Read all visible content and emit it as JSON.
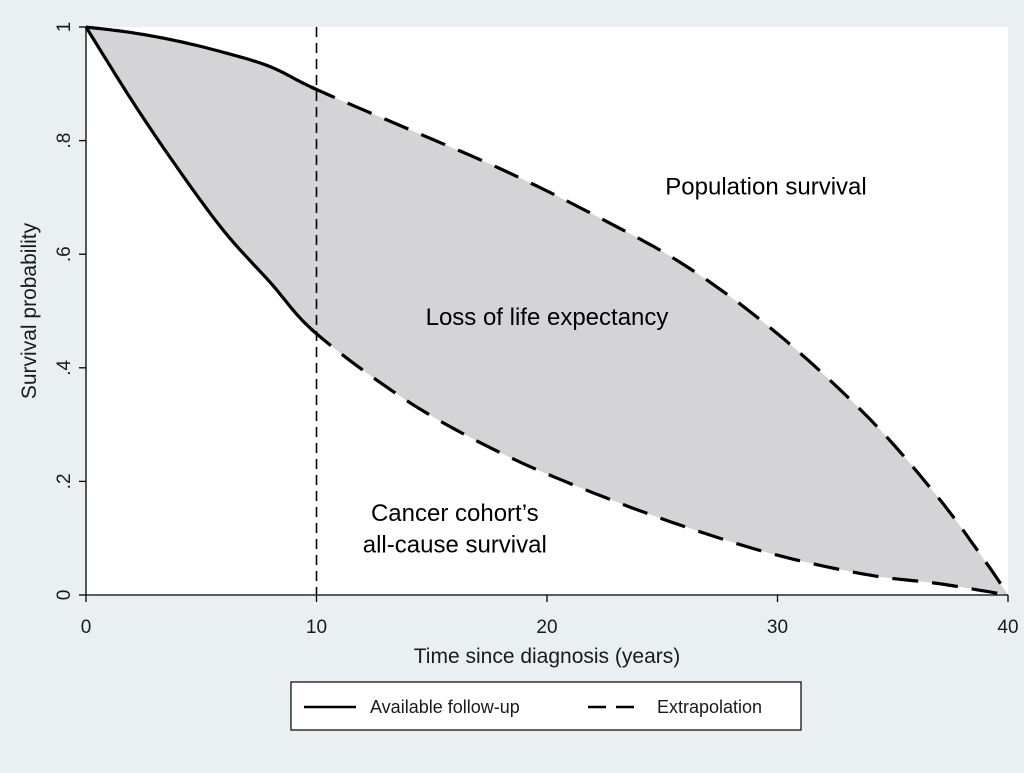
{
  "chart_data": {
    "type": "area",
    "title": "",
    "xlabel": "Time since diagnosis (years)",
    "ylabel": "Survival probability",
    "xlim": [
      0,
      40
    ],
    "ylim": [
      0,
      1
    ],
    "x_ticks": [
      0,
      10,
      20,
      30,
      40
    ],
    "x_tick_labels": [
      "0",
      "10",
      "20",
      "30",
      "40"
    ],
    "y_ticks": [
      0,
      0.2,
      0.4,
      0.6,
      0.8,
      1
    ],
    "y_tick_labels": [
      "0",
      ".2",
      ".4",
      ".6",
      ".8",
      "1"
    ],
    "grid": false,
    "vertical_reference_line_x": 10,
    "series": [
      {
        "name": "Population survival",
        "x": [
          0,
          2,
          4,
          6,
          8,
          10,
          14,
          18,
          22,
          26,
          30,
          34,
          37,
          39,
          40
        ],
        "y": [
          1.0,
          0.99,
          0.975,
          0.955,
          0.93,
          0.89,
          0.82,
          0.75,
          0.67,
          0.58,
          0.46,
          0.31,
          0.17,
          0.06,
          0.0
        ]
      },
      {
        "name": "Cancer cohort's all-cause survival",
        "x": [
          0,
          2,
          4,
          6,
          8,
          10,
          14,
          18,
          22,
          26,
          30,
          34,
          37,
          40
        ],
        "y": [
          1.0,
          0.87,
          0.75,
          0.64,
          0.55,
          0.46,
          0.34,
          0.25,
          0.18,
          0.12,
          0.07,
          0.035,
          0.02,
          0.0
        ]
      }
    ],
    "styles": {
      "available_followup_until_x": 10,
      "shading_color": "#d4d3d6",
      "line_color": "#000000",
      "plot_background": "#ffffff",
      "page_background": "#eaf0f2"
    },
    "annotations": [
      {
        "text": "Population survival",
        "x": 29.5,
        "y": 0.705
      },
      {
        "text": "Loss of life expectancy",
        "x": 20,
        "y": 0.475
      },
      {
        "text": "Cancer cohort’s",
        "x": 16,
        "y": 0.13
      },
      {
        "text": "all-cause survival",
        "x": 16,
        "y": 0.075
      }
    ],
    "legend": {
      "position": "bottom",
      "entries": [
        {
          "label": "Available follow-up",
          "style": "solid"
        },
        {
          "label": "Extrapolation",
          "style": "dashed"
        }
      ]
    }
  }
}
